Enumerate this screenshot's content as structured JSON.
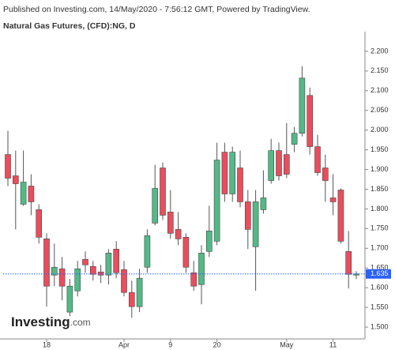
{
  "chart_data": {
    "type": "candlestick",
    "header": "Published on Investing.com, 14/May/2020 - 7:56:12 GMT, Powered by TradingView.",
    "title": "Natural Gas Futures, (CFD):NG, D",
    "logo": {
      "brand": "Investing",
      "suffix": ".com"
    },
    "categories": [
      null,
      null,
      null,
      null,
      null,
      "18",
      null,
      null,
      null,
      null,
      null,
      null,
      null,
      null,
      null,
      "Apr",
      null,
      null,
      null,
      null,
      null,
      "9",
      null,
      null,
      null,
      null,
      null,
      "20",
      null,
      null,
      null,
      null,
      null,
      null,
      null,
      null,
      "May",
      null,
      null,
      null,
      null,
      null,
      "11",
      null,
      null,
      null
    ],
    "open": [
      1.938,
      1.884,
      1.812,
      1.858,
      1.798,
      1.724,
      1.632,
      1.648,
      1.538,
      1.592,
      1.672,
      1.654,
      1.64,
      1.632,
      1.698,
      1.646,
      1.588,
      1.552,
      1.652,
      1.764,
      1.904,
      1.792,
      1.748,
      1.728,
      1.638,
      1.608,
      1.692,
      1.718,
      1.944,
      1.838,
      1.904,
      1.818,
      1.704,
      1.798,
      1.872,
      1.948,
      1.938,
      1.964,
      1.992,
      2.088,
      1.958,
      1.904,
      1.828,
      1.848,
      1.692,
      1.632
    ],
    "high": [
      1.998,
      1.948,
      1.948,
      1.888,
      1.812,
      1.738,
      1.712,
      1.678,
      1.622,
      1.668,
      1.692,
      1.668,
      1.658,
      1.698,
      1.718,
      1.668,
      1.618,
      1.648,
      1.748,
      1.912,
      1.918,
      1.848,
      1.792,
      1.738,
      1.668,
      1.708,
      1.808,
      1.968,
      1.968,
      1.958,
      1.948,
      1.848,
      1.848,
      1.898,
      1.978,
      1.968,
      2.018,
      2.008,
      2.162,
      2.108,
      1.988,
      1.938,
      1.888,
      1.852,
      1.744,
      1.642
    ],
    "low": [
      1.858,
      1.748,
      1.808,
      1.784,
      1.712,
      1.552,
      1.604,
      1.568,
      1.528,
      1.578,
      1.638,
      1.618,
      1.612,
      1.608,
      1.624,
      1.578,
      1.524,
      1.538,
      1.638,
      1.758,
      1.772,
      1.724,
      1.708,
      1.638,
      1.592,
      1.558,
      1.678,
      1.708,
      1.818,
      1.818,
      1.804,
      1.698,
      1.592,
      1.788,
      1.864,
      1.872,
      1.878,
      1.944,
      1.984,
      1.938,
      1.884,
      1.818,
      1.784,
      1.712,
      1.598,
      1.622
    ],
    "close": [
      1.878,
      1.864,
      1.868,
      1.818,
      1.728,
      1.604,
      1.652,
      1.604,
      1.604,
      1.648,
      1.658,
      1.634,
      1.632,
      1.688,
      1.638,
      1.588,
      1.552,
      1.624,
      1.732,
      1.852,
      1.784,
      1.738,
      1.724,
      1.652,
      1.604,
      1.688,
      1.744,
      1.924,
      1.838,
      1.944,
      1.818,
      1.748,
      1.818,
      1.828,
      1.948,
      1.884,
      1.888,
      1.992,
      2.132,
      1.958,
      1.892,
      1.872,
      1.818,
      1.718,
      1.634,
      1.635
    ],
    "up_color": "#53b987",
    "down_color": "#eb4d5c",
    "last_price": 1.635,
    "last_price_color": "#2962ff",
    "ylim": [
      1.47,
      2.25
    ],
    "yticks": [
      {
        "value": 1.5,
        "label": "1.500"
      },
      {
        "value": 1.55,
        "label": "1.550"
      },
      {
        "value": 1.6,
        "label": "1.600"
      },
      {
        "value": 1.65,
        "label": "1.650"
      },
      {
        "value": 1.7,
        "label": "1.700"
      },
      {
        "value": 1.75,
        "label": "1.750"
      },
      {
        "value": 1.8,
        "label": "1.800"
      },
      {
        "value": 1.85,
        "label": "1.850"
      },
      {
        "value": 1.9,
        "label": "1.900"
      },
      {
        "value": 1.95,
        "label": "1.950"
      },
      {
        "value": 2.0,
        "label": "2.000"
      },
      {
        "value": 2.05,
        "label": "2.050"
      },
      {
        "value": 2.1,
        "label": "2.100"
      },
      {
        "value": 2.15,
        "label": "2.150"
      },
      {
        "value": 2.2,
        "label": "2.200"
      }
    ],
    "grid": false
  }
}
